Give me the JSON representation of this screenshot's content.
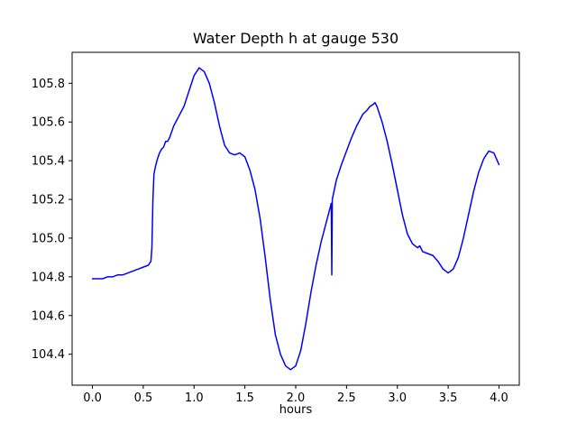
{
  "figure": {
    "background": "#ffffff"
  },
  "chart_data": {
    "type": "line",
    "title": "Water Depth h at gauge 530",
    "xlabel": "hours",
    "ylabel": "",
    "line_color": "#0000ff",
    "line_width": 1.5,
    "grid": false,
    "legend": null,
    "xlim": [
      -0.2,
      4.2
    ],
    "ylim": [
      104.24,
      105.96
    ],
    "xticks": [
      0.0,
      0.5,
      1.0,
      1.5,
      2.0,
      2.5,
      3.0,
      3.5,
      4.0
    ],
    "xtick_labels": [
      "0.0",
      "0.5",
      "1.0",
      "1.5",
      "2.0",
      "2.5",
      "3.0",
      "3.5",
      "4.0"
    ],
    "yticks": [
      104.4,
      104.6,
      104.8,
      105.0,
      105.2,
      105.4,
      105.6,
      105.8
    ],
    "ytick_labels": [
      "104.4",
      "104.6",
      "104.8",
      "105.0",
      "105.2",
      "105.4",
      "105.6",
      "105.8"
    ],
    "points": [
      [
        0.0,
        104.79
      ],
      [
        0.05,
        104.79
      ],
      [
        0.1,
        104.79
      ],
      [
        0.15,
        104.8
      ],
      [
        0.2,
        104.8
      ],
      [
        0.25,
        104.81
      ],
      [
        0.3,
        104.81
      ],
      [
        0.35,
        104.82
      ],
      [
        0.4,
        104.83
      ],
      [
        0.45,
        104.84
      ],
      [
        0.5,
        104.85
      ],
      [
        0.55,
        104.86
      ],
      [
        0.575,
        104.88
      ],
      [
        0.585,
        104.95
      ],
      [
        0.595,
        105.2
      ],
      [
        0.605,
        105.33
      ],
      [
        0.62,
        105.37
      ],
      [
        0.64,
        105.41
      ],
      [
        0.66,
        105.44
      ],
      [
        0.68,
        105.46
      ],
      [
        0.7,
        105.47
      ],
      [
        0.72,
        105.5
      ],
      [
        0.74,
        105.5
      ],
      [
        0.76,
        105.52
      ],
      [
        0.8,
        105.58
      ],
      [
        0.85,
        105.63
      ],
      [
        0.9,
        105.68
      ],
      [
        0.95,
        105.76
      ],
      [
        1.0,
        105.84
      ],
      [
        1.05,
        105.88
      ],
      [
        1.1,
        105.86
      ],
      [
        1.15,
        105.8
      ],
      [
        1.2,
        105.7
      ],
      [
        1.25,
        105.58
      ],
      [
        1.3,
        105.48
      ],
      [
        1.35,
        105.44
      ],
      [
        1.4,
        105.43
      ],
      [
        1.45,
        105.44
      ],
      [
        1.5,
        105.42
      ],
      [
        1.55,
        105.35
      ],
      [
        1.6,
        105.25
      ],
      [
        1.65,
        105.1
      ],
      [
        1.7,
        104.9
      ],
      [
        1.75,
        104.68
      ],
      [
        1.8,
        104.5
      ],
      [
        1.85,
        104.4
      ],
      [
        1.9,
        104.34
      ],
      [
        1.95,
        104.32
      ],
      [
        2.0,
        104.34
      ],
      [
        2.05,
        104.42
      ],
      [
        2.1,
        104.56
      ],
      [
        2.15,
        104.72
      ],
      [
        2.2,
        104.86
      ],
      [
        2.25,
        104.98
      ],
      [
        2.3,
        105.08
      ],
      [
        2.35,
        105.18
      ],
      [
        2.355,
        104.81
      ],
      [
        2.36,
        105.2
      ],
      [
        2.4,
        105.3
      ],
      [
        2.45,
        105.38
      ],
      [
        2.5,
        105.45
      ],
      [
        2.55,
        105.52
      ],
      [
        2.6,
        105.58
      ],
      [
        2.63,
        105.61
      ],
      [
        2.66,
        105.64
      ],
      [
        2.7,
        105.66
      ],
      [
        2.73,
        105.68
      ],
      [
        2.76,
        105.69
      ],
      [
        2.78,
        105.7
      ],
      [
        2.8,
        105.68
      ],
      [
        2.85,
        105.6
      ],
      [
        2.9,
        105.5
      ],
      [
        2.95,
        105.38
      ],
      [
        3.0,
        105.25
      ],
      [
        3.05,
        105.12
      ],
      [
        3.1,
        105.02
      ],
      [
        3.15,
        104.97
      ],
      [
        3.2,
        104.95
      ],
      [
        3.22,
        104.96
      ],
      [
        3.25,
        104.93
      ],
      [
        3.3,
        104.92
      ],
      [
        3.35,
        104.91
      ],
      [
        3.4,
        104.88
      ],
      [
        3.45,
        104.84
      ],
      [
        3.5,
        104.82
      ],
      [
        3.55,
        104.84
      ],
      [
        3.6,
        104.9
      ],
      [
        3.65,
        105.0
      ],
      [
        3.7,
        105.12
      ],
      [
        3.75,
        105.24
      ],
      [
        3.8,
        105.34
      ],
      [
        3.85,
        105.41
      ],
      [
        3.9,
        105.45
      ],
      [
        3.95,
        105.44
      ],
      [
        4.0,
        105.38
      ]
    ]
  }
}
